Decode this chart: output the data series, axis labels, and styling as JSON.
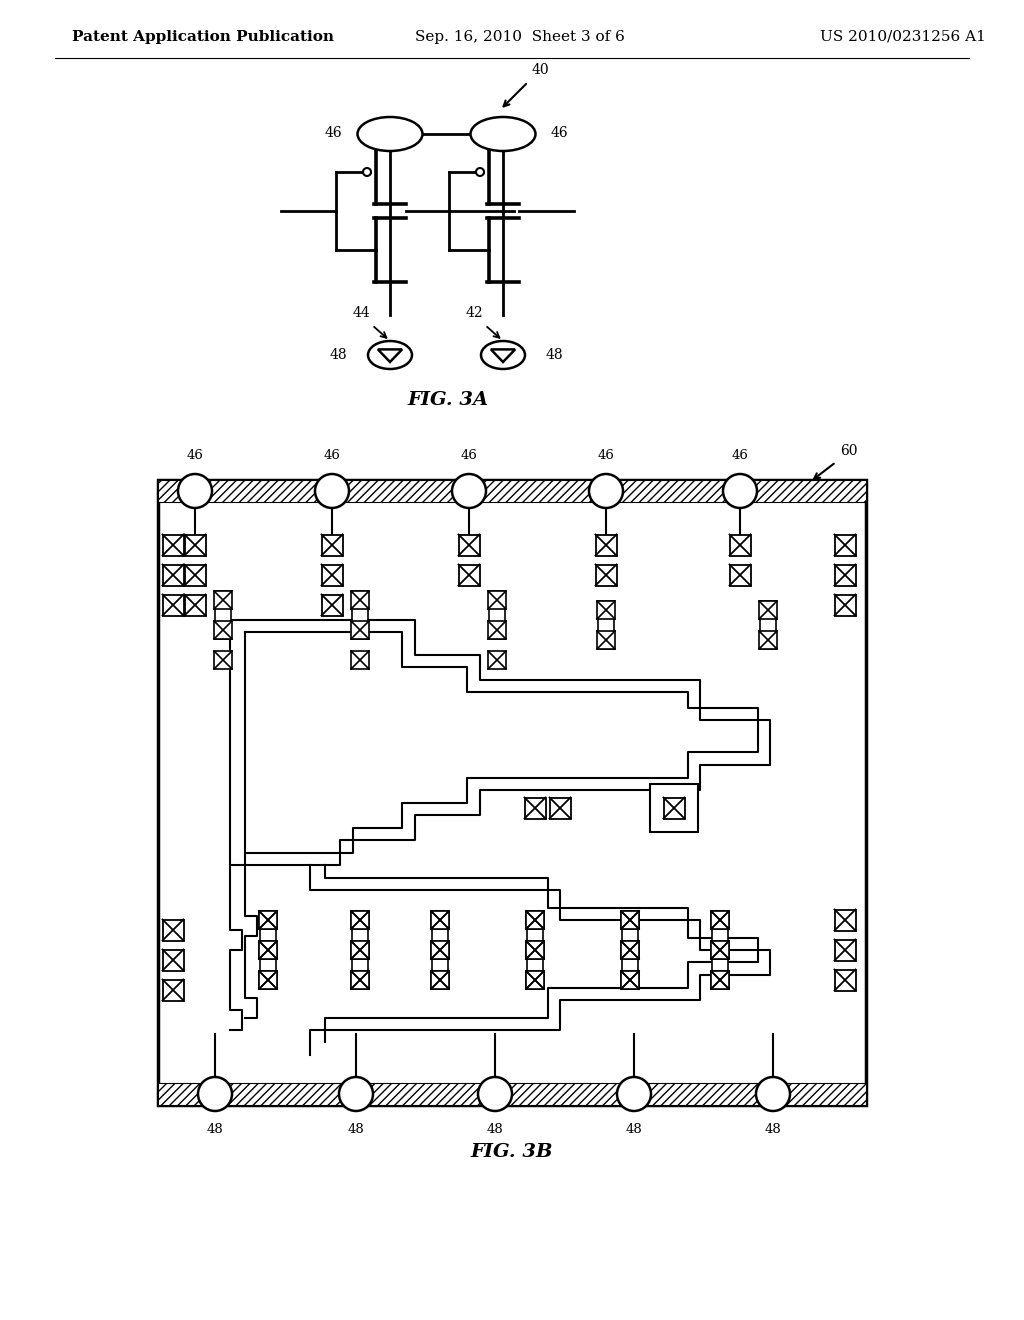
{
  "title_left": "Patent Application Publication",
  "title_center": "Sep. 16, 2010  Sheet 3 of 6",
  "title_right": "US 2010/0231256 A1",
  "fig3a_label": "FIG. 3A",
  "fig3b_label": "FIG. 3B",
  "background": "#ffffff",
  "line_color": "#000000",
  "header_fontsize": 11,
  "label_fontsize": 10,
  "fig_label_fontsize": 14
}
